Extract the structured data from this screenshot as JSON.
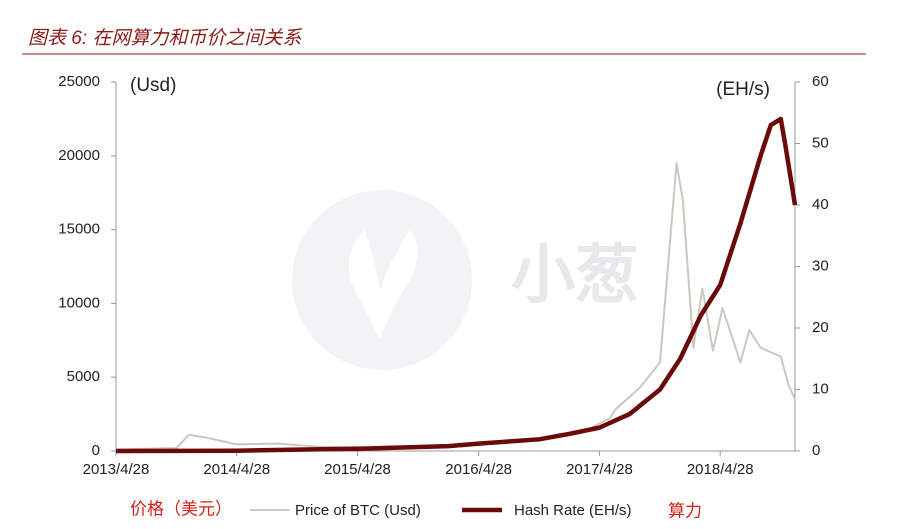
{
  "chart_data": {
    "type": "line",
    "title": "图表 6: 在网算力和币价之间关系",
    "y_label": "(Usd)",
    "y2_label": "(EH/s)",
    "watermark": "小葱",
    "price_label_cn": "价格（美元）",
    "hash_label_cn": "算力",
    "xlim": [
      "2013/4/28",
      "2018/12/10"
    ],
    "xticks": [
      "2013/4/28",
      "2014/4/28",
      "2015/4/28",
      "2016/4/28",
      "2017/4/28",
      "2018/4/28"
    ],
    "ylim": [
      0,
      25000
    ],
    "yticks": [
      0,
      5000,
      10000,
      15000,
      20000,
      25000
    ],
    "y2lim": [
      0,
      60
    ],
    "y2ticks": [
      0,
      10,
      20,
      30,
      40,
      50,
      60
    ],
    "series": [
      {
        "name": "Price of BTC (Usd)",
        "color": "#c9c9c1",
        "width": 2,
        "x": [
          "2013/4/28",
          "2013/10/28",
          "2013/12/4",
          "2014/1/28",
          "2014/4/28",
          "2014/8/28",
          "2015/1/28",
          "2015/7/28",
          "2016/1/28",
          "2016/6/28",
          "2016/12/28",
          "2017/3/1",
          "2017/5/28",
          "2017/6/15",
          "2017/8/28",
          "2017/10/28",
          "2017/12/17",
          "2018/1/5",
          "2018/2/6",
          "2018/3/5",
          "2018/4/6",
          "2018/5/5",
          "2018/6/28",
          "2018/7/25",
          "2018/8/28",
          "2018/10/28",
          "2018/11/20",
          "2018/12/10"
        ],
        "values": [
          100,
          200,
          1100,
          900,
          450,
          500,
          250,
          280,
          400,
          650,
          950,
          1200,
          2200,
          2800,
          4300,
          6000,
          19500,
          17000,
          7000,
          11000,
          6800,
          9700,
          6000,
          8200,
          7000,
          6400,
          4500,
          3500
        ]
      },
      {
        "name": "Hash Rate (EH/s)",
        "color": "#6b0a0a",
        "width": 4.5,
        "axis": "y2",
        "x": [
          "2013/4/28",
          "2014/4/28",
          "2015/1/28",
          "2015/4/28",
          "2016/1/28",
          "2016/4/28",
          "2016/10/28",
          "2017/1/28",
          "2017/4/28",
          "2017/7/28",
          "2017/10/28",
          "2017/12/28",
          "2018/2/28",
          "2018/4/28",
          "2018/6/28",
          "2018/8/28",
          "2018/9/28",
          "2018/10/28",
          "2018/11/10",
          "2018/11/28",
          "2018/12/10"
        ],
        "values": [
          0,
          0.05,
          0.3,
          0.35,
          0.8,
          1.2,
          1.9,
          2.8,
          3.8,
          6,
          10,
          15,
          22,
          27,
          37,
          48,
          53,
          54,
          50,
          44,
          40
        ]
      }
    ]
  }
}
